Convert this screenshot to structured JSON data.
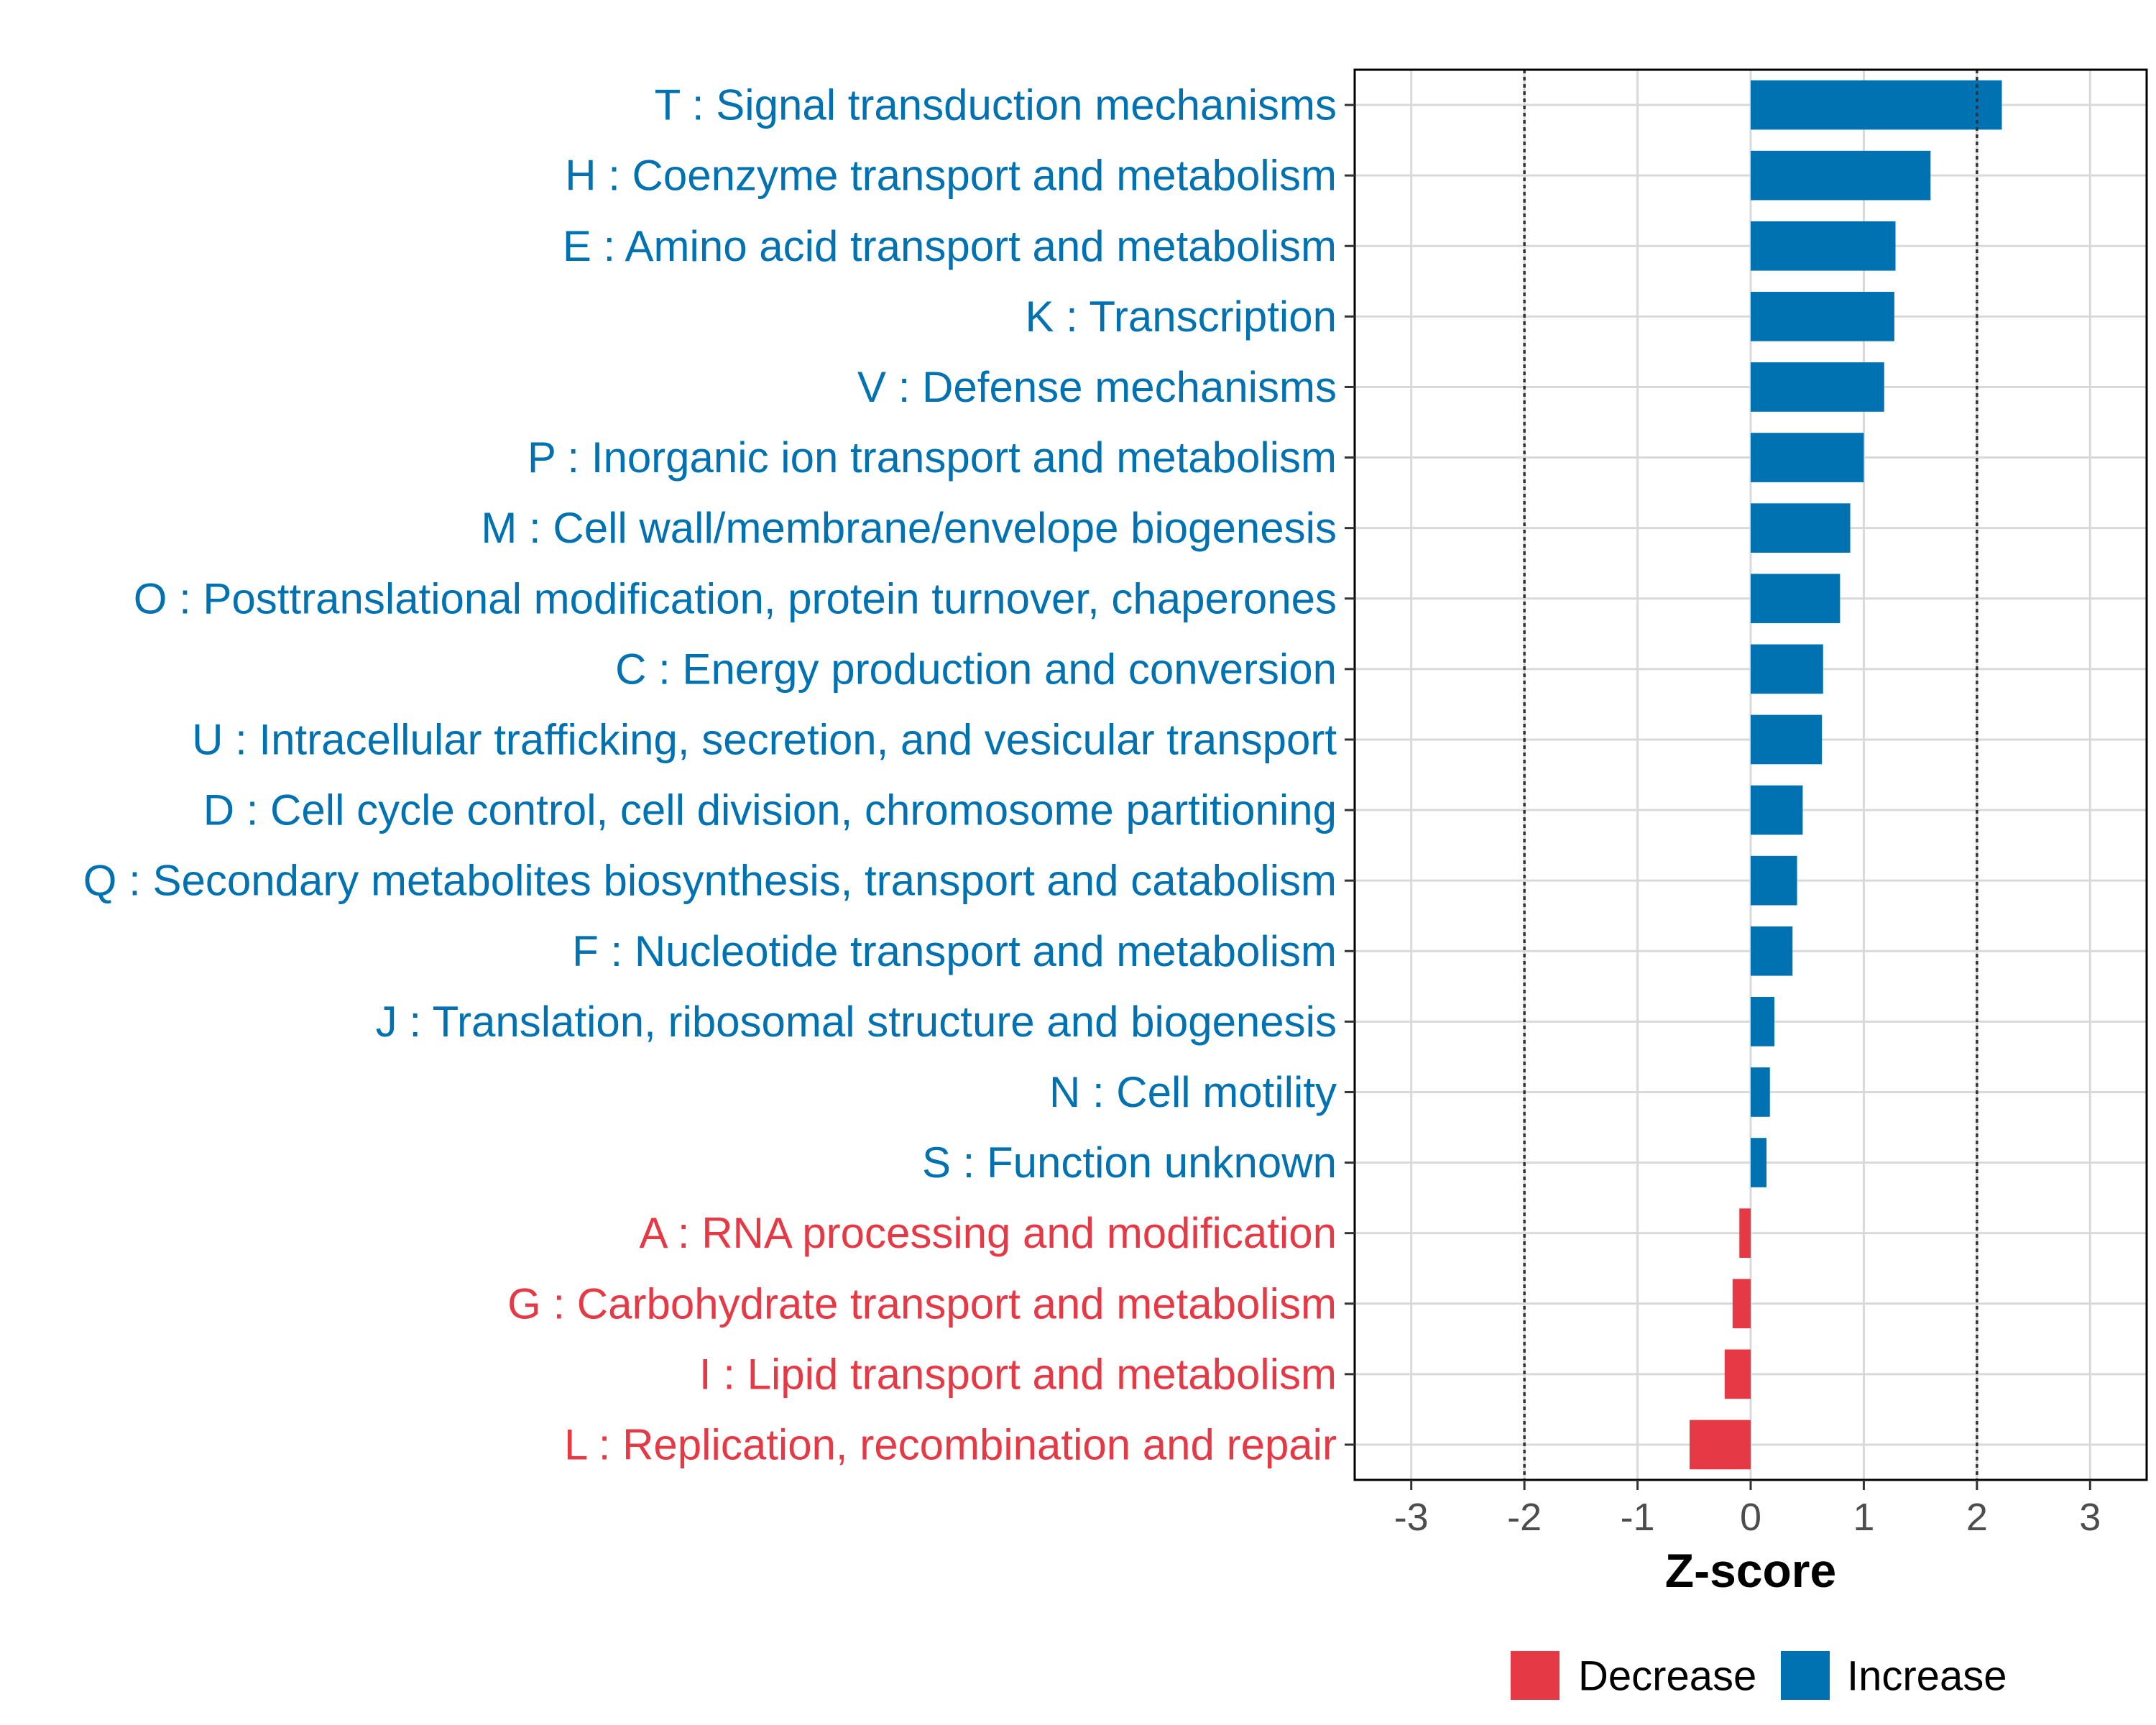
{
  "chart_data": {
    "type": "bar",
    "orientation": "horizontal",
    "title": "",
    "xlabel": "Z-score",
    "ylabel": "",
    "xlim": [
      -3.5,
      3.5
    ],
    "xticks": [
      -3,
      -2,
      -1,
      0,
      1,
      2,
      3
    ],
    "xtick_labels": [
      "-3",
      "-2",
      "-1",
      "0",
      "1",
      "2",
      "3"
    ],
    "reference_lines": [
      -2,
      2
    ],
    "grid": true,
    "colors": {
      "Increase": "#0072B2",
      "Decrease": "#E63946"
    },
    "categories": [
      "T : Signal transduction mechanisms",
      "H : Coenzyme transport and metabolism",
      "E : Amino acid transport and metabolism",
      "K : Transcription",
      "V : Defense mechanisms",
      "P : Inorganic ion transport and metabolism",
      "M : Cell wall/membrane/envelope biogenesis",
      "O : Posttranslational modification, protein turnover, chaperones",
      "C : Energy production and conversion",
      "U : Intracellular trafficking, secretion, and vesicular transport",
      "D : Cell cycle control, cell division, chromosome partitioning",
      "Q : Secondary metabolites biosynthesis, transport and catabolism",
      "F : Nucleotide transport and metabolism",
      "J : Translation, ribosomal structure and biogenesis",
      "N : Cell motility",
      "S : Function unknown",
      "A : RNA processing and modification",
      "G : Carbohydrate transport and metabolism",
      "I : Lipid transport and metabolism",
      "L : Replication, recombination and repair"
    ],
    "values": [
      2.22,
      1.59,
      1.28,
      1.27,
      1.18,
      1.0,
      0.88,
      0.79,
      0.64,
      0.63,
      0.46,
      0.41,
      0.37,
      0.21,
      0.17,
      0.14,
      -0.1,
      -0.16,
      -0.23,
      -0.54
    ],
    "groups": [
      "Increase",
      "Increase",
      "Increase",
      "Increase",
      "Increase",
      "Increase",
      "Increase",
      "Increase",
      "Increase",
      "Increase",
      "Increase",
      "Increase",
      "Increase",
      "Increase",
      "Increase",
      "Increase",
      "Decrease",
      "Decrease",
      "Decrease",
      "Decrease"
    ],
    "legend": {
      "placement": "bottom",
      "entries": [
        "Decrease",
        "Increase"
      ]
    }
  }
}
